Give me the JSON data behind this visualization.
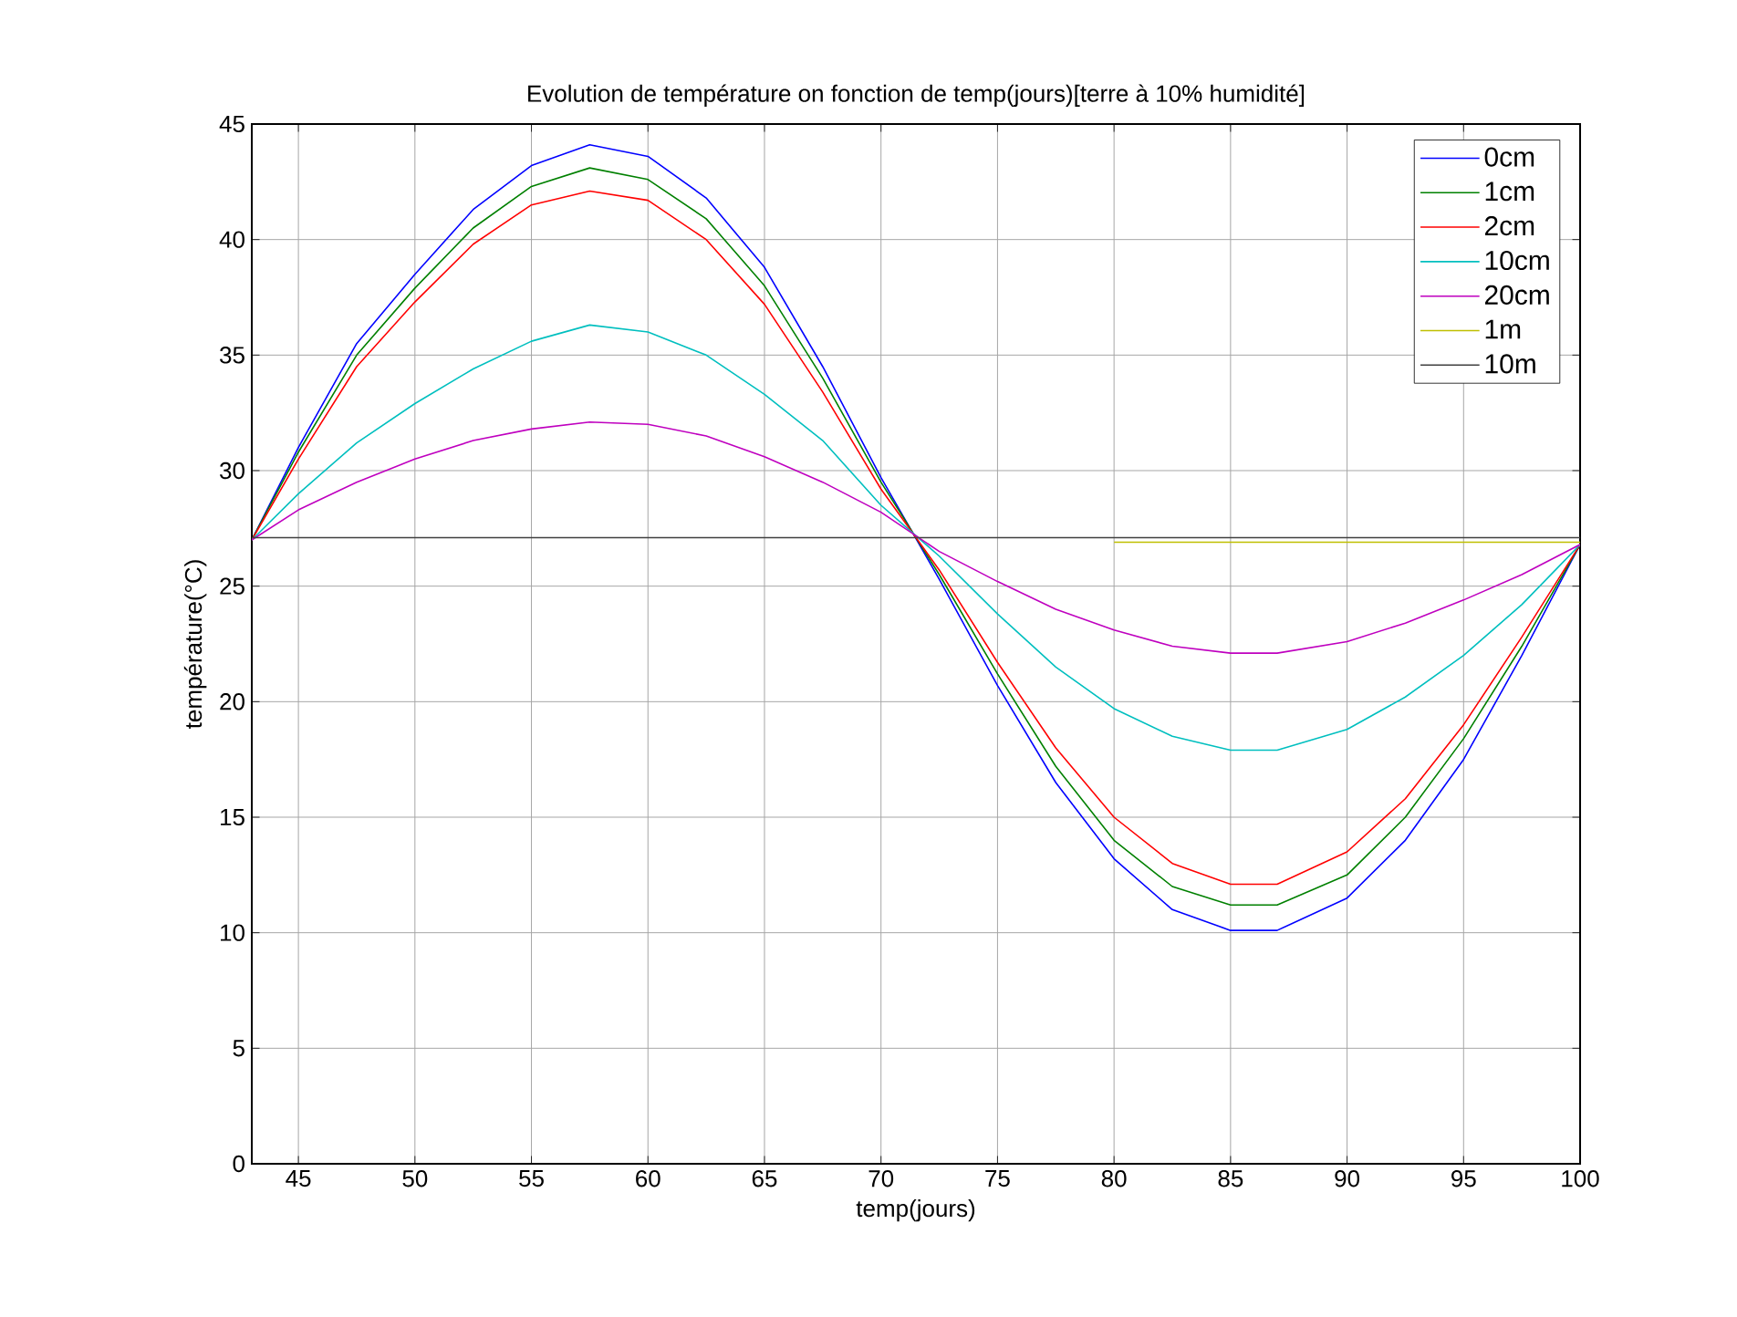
{
  "chart_data": {
    "type": "line",
    "title": "Evolution de température on fonction de temp(jours)[terre à 10% humidité]",
    "xlabel": "temp(jours)",
    "ylabel": "température(°C)",
    "x": [
      43,
      45,
      47.5,
      50,
      52.5,
      55,
      57.5,
      60,
      62.5,
      65,
      67.5,
      70,
      72.5,
      75,
      77.5,
      80,
      82.5,
      85,
      87,
      90,
      92.5,
      95,
      97.5,
      100
    ],
    "series": [
      {
        "name": "0cm",
        "color": "#0000ff",
        "values": [
          27,
          31,
          35.5,
          38.5,
          41.3,
          43.2,
          44.1,
          43.6,
          41.8,
          38.8,
          34.5,
          29.7,
          25.3,
          20.7,
          16.5,
          13.2,
          11,
          10.1,
          10.1,
          11.5,
          14,
          17.5,
          22,
          26.8
        ]
      },
      {
        "name": "1cm",
        "color": "#008000",
        "values": [
          27,
          30.8,
          35,
          37.9,
          40.5,
          42.3,
          43.1,
          42.6,
          40.9,
          38,
          34,
          29.5,
          25.5,
          21.2,
          17.2,
          14,
          12,
          11.2,
          11.2,
          12.5,
          15,
          18.4,
          22.4,
          26.8
        ]
      },
      {
        "name": "2cm",
        "color": "#ff0000",
        "values": [
          27,
          30.5,
          34.5,
          37.3,
          39.8,
          41.5,
          42.1,
          41.7,
          40,
          37.2,
          33.4,
          29.2,
          25.7,
          21.7,
          18,
          15,
          13,
          12.1,
          12.1,
          13.5,
          15.8,
          19,
          22.8,
          26.8
        ]
      },
      {
        "name": "10cm",
        "color": "#00bfbf",
        "values": [
          27,
          29,
          31.2,
          32.9,
          34.4,
          35.6,
          36.3,
          36,
          35,
          33.3,
          31.3,
          28.5,
          26.3,
          23.8,
          21.5,
          19.7,
          18.5,
          17.9,
          17.9,
          18.8,
          20.2,
          22,
          24.2,
          26.8
        ]
      },
      {
        "name": "20cm",
        "color": "#bf00bf",
        "values": [
          27,
          28.3,
          29.5,
          30.5,
          31.3,
          31.8,
          32.1,
          32,
          31.5,
          30.6,
          29.5,
          28.2,
          26.5,
          25.2,
          24,
          23.1,
          22.4,
          22.1,
          22.1,
          22.6,
          23.4,
          24.4,
          25.5,
          26.8
        ]
      },
      {
        "name": "1m",
        "color": "#bfbf00",
        "x": [
          80,
          85,
          90,
          95,
          100
        ],
        "values": [
          26.9,
          26.9,
          26.9,
          26.9,
          26.9
        ]
      },
      {
        "name": "10m",
        "color": "#404040",
        "x": [
          43,
          100
        ],
        "values": [
          27.1,
          27.1
        ]
      }
    ],
    "xlim": [
      43,
      100
    ],
    "ylim": [
      0,
      45
    ],
    "xticks": [
      45,
      50,
      55,
      60,
      65,
      70,
      75,
      80,
      85,
      90,
      95,
      100
    ],
    "yticks": [
      0,
      5,
      10,
      15,
      20,
      25,
      30,
      35,
      40,
      45
    ],
    "grid": true,
    "legend": "top right",
    "line_style": "solid",
    "marker": "none"
  }
}
